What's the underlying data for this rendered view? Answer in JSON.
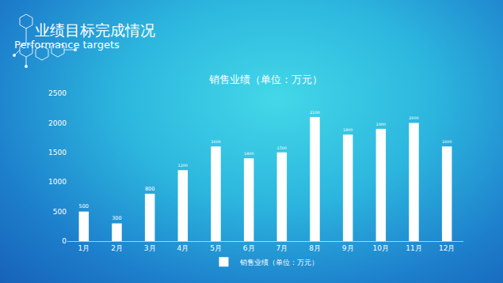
{
  "header": {
    "title": "业绩目标完成情况",
    "subtitle": "Performance targets"
  },
  "chart_data": {
    "type": "bar",
    "title": "销售业绩（单位：万元）",
    "categories": [
      "1月",
      "2月",
      "3月",
      "4月",
      "5月",
      "6月",
      "7月",
      "8月",
      "9月",
      "10月",
      "11月",
      "12月"
    ],
    "series": [
      {
        "name": "销售业绩（单位：万元）",
        "color": "#ffffff",
        "values": [
          500,
          300,
          800,
          1200,
          1600,
          1400,
          1500,
          2100,
          1800,
          1900,
          2000,
          1600
        ]
      }
    ],
    "ylim": [
      0,
      2500
    ],
    "yticks": [
      0,
      500,
      1000,
      1500,
      2000,
      2500
    ],
    "grid": false,
    "legend": "bottom",
    "data_labels": true
  }
}
